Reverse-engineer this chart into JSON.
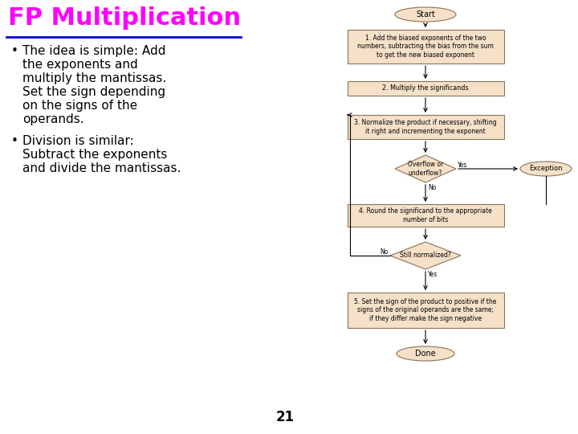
{
  "title": "FP Multiplication",
  "title_color": "#FF00FF",
  "title_underline_color": "#0000CD",
  "background_color": "#FFFFFF",
  "bullet1_lines": [
    "The idea is simple: Add",
    "the exponents and",
    "multiply the mantissas.",
    "Set the sign depending",
    "on the signs of the",
    "operands."
  ],
  "bullet2_lines": [
    "Division is similar:",
    "Subtract the exponents",
    "and divide the mantissas."
  ],
  "page_number": "21",
  "box_fill": "#F5E0C8",
  "box_edge": "#8B7355",
  "diamond_fill": "#F5E0C8",
  "oval_fill": "#F5E0C8",
  "flowchart": {
    "step1_text": "1. Add the biased exponents of the two\nnumbers, subtracting the bias from the sum\nto get the new biased exponent",
    "step2_text": "2. Multiply the significands",
    "step3_text": "3. Normalize the product if necessary, shifting\nit right and incrementing the exponent",
    "step4_text": "4. Round the significand to the appropriate\nnumber of bits",
    "step5_text": "5. Set the sign of the product to positive if the\nsigns of the original operands are the same;\nif they differ make the sign negative",
    "diamond1_text": "Overflow or\nunderflow?",
    "diamond2_text": "Still normalized?",
    "exception_text": "Exception"
  }
}
